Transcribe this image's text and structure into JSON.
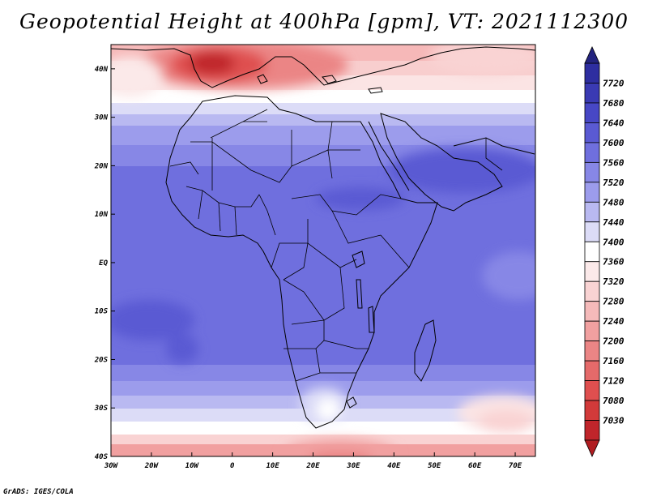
{
  "title": "Geopotential Height at 400hPa [gpm], VT: 2021112300",
  "credit": "GrADS: IGES/COLA",
  "map": {
    "region": "Africa and surrounding areas",
    "lon_range": [
      -30,
      75
    ],
    "lat_range": [
      -40,
      45
    ],
    "lon_ticks": [
      {
        "v": -30,
        "t": "30W"
      },
      {
        "v": -20,
        "t": "20W"
      },
      {
        "v": -10,
        "t": "10W"
      },
      {
        "v": 0,
        "t": "0"
      },
      {
        "v": 10,
        "t": "10E"
      },
      {
        "v": 20,
        "t": "20E"
      },
      {
        "v": 30,
        "t": "30E"
      },
      {
        "v": 40,
        "t": "40E"
      },
      {
        "v": 50,
        "t": "50E"
      },
      {
        "v": 60,
        "t": "60E"
      },
      {
        "v": 70,
        "t": "70E"
      }
    ],
    "lat_ticks": [
      {
        "v": 40,
        "t": "40N"
      },
      {
        "v": 30,
        "t": "30N"
      },
      {
        "v": 20,
        "t": "20N"
      },
      {
        "v": 10,
        "t": "10N"
      },
      {
        "v": 0,
        "t": "EQ"
      },
      {
        "v": -10,
        "t": "10S"
      },
      {
        "v": -20,
        "t": "20S"
      },
      {
        "v": -30,
        "t": "30S"
      },
      {
        "v": -40,
        "t": "40S"
      }
    ]
  },
  "colorbar": {
    "levels": [
      7030,
      7080,
      7120,
      7160,
      7200,
      7240,
      7280,
      7320,
      7360,
      7400,
      7440,
      7480,
      7520,
      7560,
      7600,
      7640,
      7680,
      7720
    ],
    "colors": [
      "#c0252b",
      "#d23a3a",
      "#df4f4f",
      "#e56a6a",
      "#eb8585",
      "#f1a0a0",
      "#f5baba",
      "#f9d3d3",
      "#fbe9e9",
      "#ffffff",
      "#dcdcf7",
      "#b9b9f1",
      "#9c9cec",
      "#8787e6",
      "#6f6fde",
      "#5a5ad3",
      "#4747c5",
      "#3a3ab3",
      "#2e2ea0"
    ],
    "min_color": "#b01c20",
    "max_color": "#23237f"
  }
}
